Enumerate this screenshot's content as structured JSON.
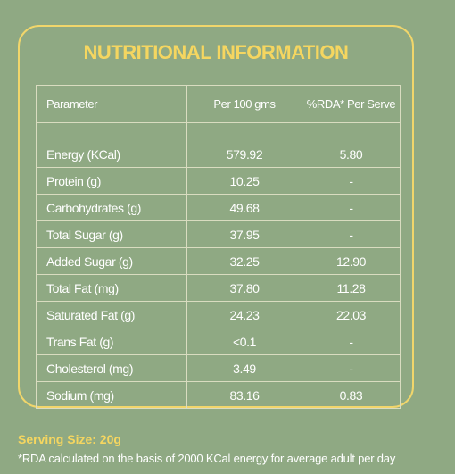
{
  "header": {
    "title": "NUTRITIONAL INFORMATION"
  },
  "table": {
    "columns": [
      "Parameter",
      "Per 100 gms",
      "%RDA* Per Serve"
    ],
    "rows": [
      [
        "Energy (KCal)",
        "579.92",
        "5.80"
      ],
      [
        "Protein (g)",
        "10.25",
        "-"
      ],
      [
        "Carbohydrates (g)",
        "49.68",
        "-"
      ],
      [
        "Total Sugar (g)",
        "37.95",
        "-"
      ],
      [
        "Added Sugar (g)",
        "32.25",
        "12.90"
      ],
      [
        "Total Fat (mg)",
        "37.80",
        "11.28"
      ],
      [
        "Saturated Fat (g)",
        "24.23",
        "22.03"
      ],
      [
        "Trans Fat (g)",
        "<0.1",
        "-"
      ],
      [
        "Cholesterol (mg)",
        "3.49",
        "-"
      ],
      [
        "Sodium (mg)",
        "83.16",
        "0.83"
      ]
    ]
  },
  "footer": {
    "serving_size": "Serving Size: 20g",
    "note": "*RDA calculated on the basis of 2000 KCal energy for average adult per day"
  }
}
